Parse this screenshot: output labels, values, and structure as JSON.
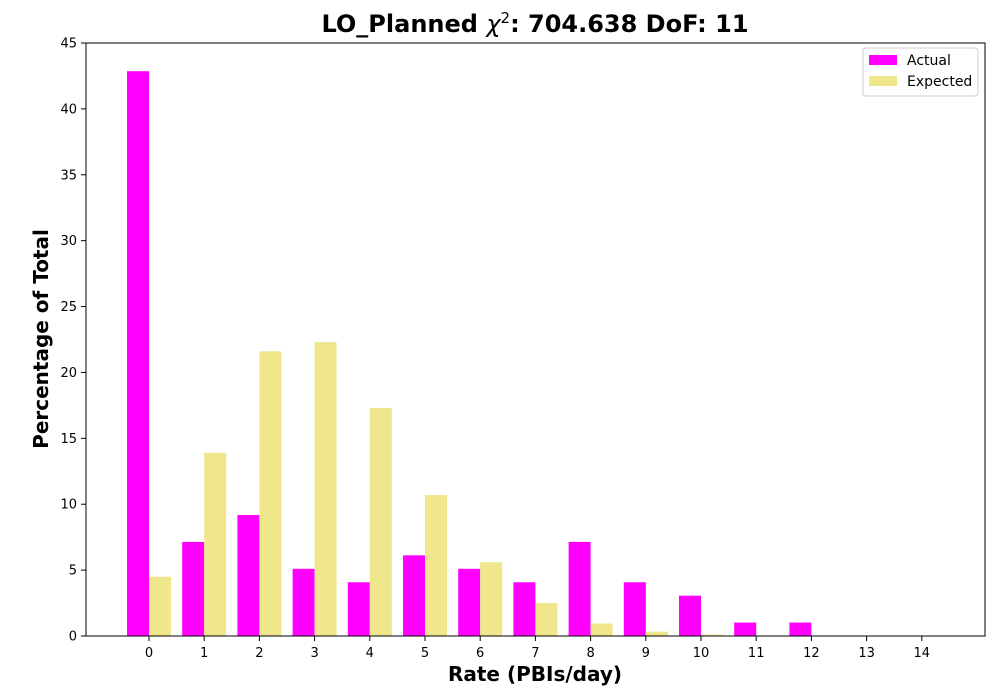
{
  "chart_data": {
    "type": "bar",
    "title_prefix": "LO_Planned ",
    "title_chi": "χ",
    "title_sup": "2",
    "title_suffix": ": 704.638 DoF: 11",
    "xlabel": "Rate (PBIs/day)",
    "ylabel": "Percentage of Total",
    "categories": [
      "0",
      "1",
      "2",
      "3",
      "4",
      "5",
      "6",
      "7",
      "8",
      "9",
      "10",
      "11",
      "12",
      "13",
      "14"
    ],
    "ylim": [
      0,
      45
    ],
    "yticks": [
      0,
      5,
      10,
      15,
      20,
      25,
      30,
      35,
      40,
      45
    ],
    "grid": false,
    "legend_position": "top-right",
    "series": [
      {
        "name": "Actual",
        "color": "#ff00ff",
        "values": [
          42.86,
          7.14,
          9.18,
          5.1,
          4.08,
          6.12,
          5.1,
          4.08,
          7.14,
          4.08,
          3.06,
          1.02,
          1.02,
          0,
          0
        ]
      },
      {
        "name": "Expected",
        "color": "#f0e68c",
        "values": [
          4.5,
          13.9,
          21.6,
          22.3,
          17.3,
          10.7,
          5.6,
          2.5,
          0.95,
          0.33,
          0.1,
          0.03,
          0.01,
          0.0,
          0.0
        ]
      }
    ]
  }
}
